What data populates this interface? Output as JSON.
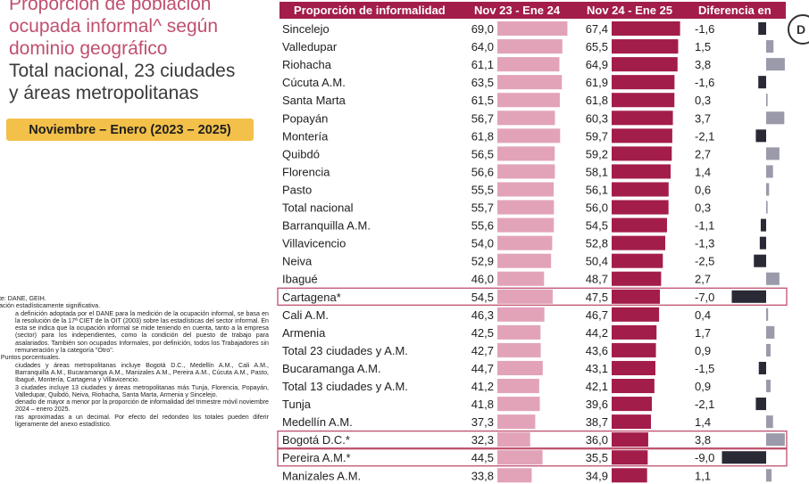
{
  "title": {
    "line1": "Proporción de población",
    "line2": "ocupada informal^ según",
    "line3": "dominio geográfico",
    "line4": "Total nacional, 23 ciudades",
    "line5": "y áreas metropolitanas"
  },
  "period_badge": "Noviembre – Enero (2023 – 2025)",
  "logo_letter": "D",
  "notes": [
    "nte: DANE, GEIH.",
    "riación estadísticamente significativa.",
    "a definición adoptada por el DANE para la medición de la ocupación informal, se basa en la resolución de la 17ª CIET de la OIT (2003) sobre las estadísticas del sector informal. En esta se indica que la ocupación informal se mide teniendo en cuenta, tanto a la empresa (sector) para los independientes, como la condición del puesto de trabajo para asalariados. También son ocupados Informales, por definición, todos los Trabajadores sin remuneración y la categoría \"Otro\".",
    ".: Puntos porcentuales.",
    " ciudades y áreas metropolitanas incluye Bogotá D.C., Medellín A.M., Cali A.M., Barranquilla A.M., Bucaramanga A.M., Manizales A.M., Pereira A.M., Cúcuta A.M., Pasto, Ibagué, Montería, Cartagena y Villavicencio.",
    "3 ciudades incluye 13 ciudades y áreas metropolitanas más Tunja, Florencia, Popayán, Valledupar, Quibdó, Neiva, Riohacha, Santa Marta, Armenia y Sincelejo.",
    "denado de mayor a menor por la proporción de informalidad del trimestre móvil noviembre 2024 – enero 2025.",
    "ras aproximadas a un decimal. Por efecto del redondeo los totales pueden diferir ligeramente del anexo estadístico."
  ],
  "chart_data": {
    "type": "bar",
    "headers": {
      "category": "Proporción de informalidad",
      "series1": "Nov 23 - Ene 24",
      "series2": "Nov 24 - Ene 25",
      "difference": "Diferencia en"
    },
    "categories": [
      "Sincelejo",
      "Valledupar",
      "Riohacha",
      "Cúcuta A.M.",
      "Santa Marta",
      "Popayán",
      "Montería",
      "Quibdó",
      "Florencia",
      "Pasto",
      "Total nacional",
      "Barranquilla A.M.",
      "Villavicencio",
      "Neiva",
      "Ibagué",
      "Cartagena*",
      "Cali A.M.",
      "Armenia",
      "Total 23 ciudades y A.M.",
      "Bucaramanga A.M.",
      "Total 13 ciudades y A.M.",
      "Tunja",
      "Medellín A.M.",
      "Bogotá D.C.*",
      "Pereira A.M.*",
      "Manizales A.M."
    ],
    "series": [
      {
        "name": "Nov 23 - Ene 24",
        "color": "#e2a3b9",
        "values": [
          69.0,
          64.0,
          61.1,
          63.5,
          61.5,
          56.7,
          61.8,
          56.5,
          56.6,
          55.5,
          55.7,
          55.6,
          54.0,
          52.9,
          46.0,
          54.5,
          46.3,
          42.5,
          42.7,
          44.7,
          41.2,
          41.8,
          37.3,
          32.3,
          44.5,
          33.8
        ],
        "labels": [
          "69,0",
          "64,0",
          "61,1",
          "63,5",
          "61,5",
          "56,7",
          "61,8",
          "56,5",
          "56,6",
          "55,5",
          "55,7",
          "55,6",
          "54,0",
          "52,9",
          "46,0",
          "54,5",
          "46,3",
          "42,5",
          "42,7",
          "44,7",
          "41,2",
          "41,8",
          "37,3",
          "32,3",
          "44,5",
          "33,8"
        ]
      },
      {
        "name": "Nov 24 - Ene 25",
        "color": "#a31d4a",
        "values": [
          67.4,
          65.5,
          64.9,
          61.9,
          61.8,
          60.3,
          59.7,
          59.2,
          58.1,
          56.1,
          56.0,
          54.5,
          52.8,
          50.4,
          48.7,
          47.5,
          46.7,
          44.2,
          43.6,
          43.1,
          42.1,
          39.6,
          38.7,
          36.0,
          35.5,
          34.9
        ],
        "labels": [
          "67,4",
          "65,5",
          "64,9",
          "61,9",
          "61,8",
          "60,3",
          "59,7",
          "59,2",
          "58,1",
          "56,1",
          "56,0",
          "54,5",
          "52,8",
          "50,4",
          "48,7",
          "47,5",
          "46,7",
          "44,2",
          "43,6",
          "43,1",
          "42,1",
          "39,6",
          "38,7",
          "36,0",
          "35,5",
          "34,9"
        ]
      }
    ],
    "difference": {
      "values": [
        -1.6,
        1.5,
        3.8,
        -1.6,
        0.3,
        3.7,
        -2.1,
        2.7,
        1.4,
        0.6,
        0.3,
        -1.1,
        -1.3,
        -2.5,
        2.7,
        -7.0,
        0.4,
        1.7,
        0.9,
        -1.5,
        0.9,
        -2.1,
        1.4,
        3.8,
        -9.0,
        1.1
      ],
      "labels": [
        "-1,6",
        "1,5",
        "3,8",
        "-1,6",
        "0,3",
        "3,7",
        "-2,1",
        "2,7",
        "1,4",
        "0,6",
        "0,3",
        "-1,1",
        "-1,3",
        "-2,5",
        "2,7",
        "-7,0",
        "0,4",
        "1,7",
        "0,9",
        "-1,5",
        "0,9",
        "-2,1",
        "1,4",
        "3,8",
        "-9,0",
        "1,1"
      ],
      "positive_color": "#9a9aaa",
      "negative_color": "#2a2a36"
    },
    "highlighted": [
      "Cartagena*",
      "Bogotá D.C.*",
      "Pereira A.M.*"
    ],
    "highlight_color": "#c0506e",
    "header_color": "#a31d4a"
  }
}
